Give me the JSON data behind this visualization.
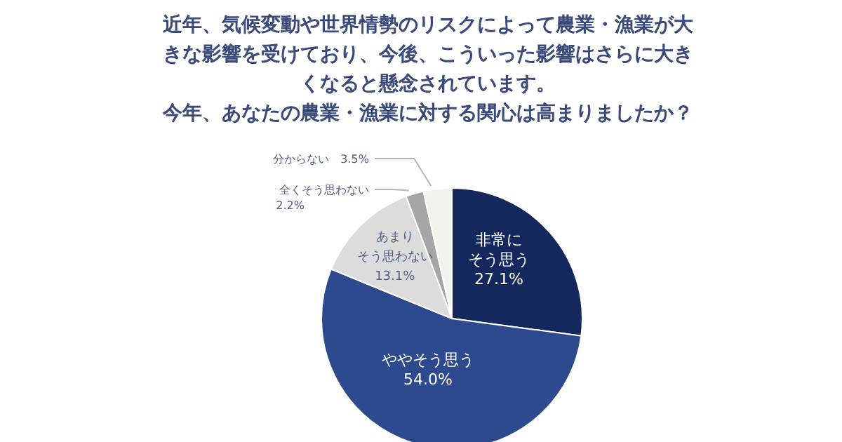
{
  "chart_data": {
    "type": "pie",
    "title": "近年、気候変動や世界情勢のリスクによって農業・漁業が大きな影響を受けており、今後、こういった影響はさらに大きくなると懸念されています。今年、あなたの農業・漁業に対する関心は高まりましたか？",
    "categories": [
      "非常にそう思う",
      "ややそう思う",
      "あまりそう思わない",
      "全くそう思わない",
      "分からない"
    ],
    "values": [
      27.1,
      54.0,
      13.1,
      2.2,
      3.5
    ],
    "colors": [
      "#14285e",
      "#2e4a8f",
      "#dcdcdc",
      "#a6a6a6",
      "#f3f3ee"
    ],
    "value_labels": [
      "27.1%",
      "54.0%",
      "13.1%",
      "2.2%",
      "3.5%"
    ],
    "legend": false
  }
}
